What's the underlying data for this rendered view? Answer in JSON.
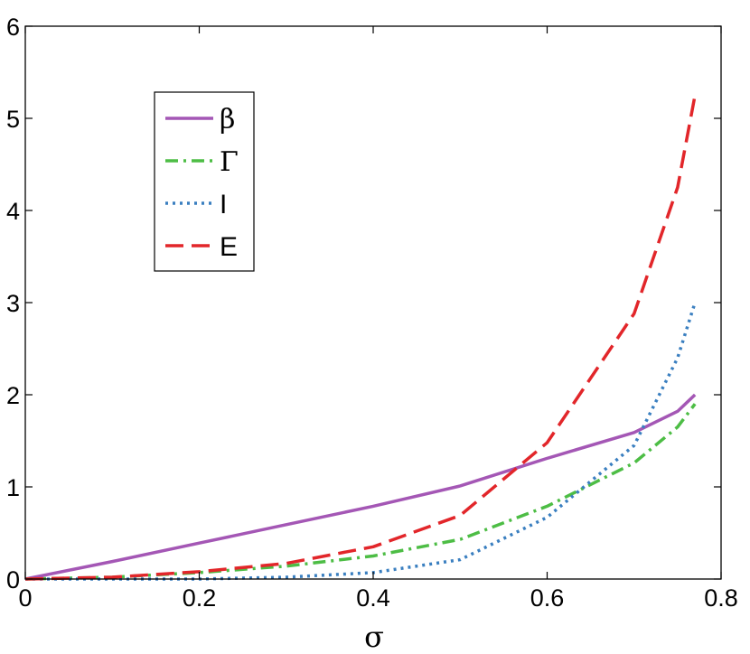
{
  "chart_data": {
    "type": "line",
    "title": "",
    "xlabel": "σ",
    "ylabel": "",
    "xlim": [
      0,
      0.8
    ],
    "ylim": [
      0,
      6
    ],
    "xticks": [
      0,
      0.2,
      0.4,
      0.6,
      0.8
    ],
    "xtick_labels": [
      "0",
      "0.2",
      "0.4",
      "0.6",
      "0.8"
    ],
    "yticks": [
      0,
      1,
      2,
      3,
      4,
      5,
      6
    ],
    "ytick_labels": [
      "0",
      "1",
      "2",
      "3",
      "4",
      "5",
      "6"
    ],
    "grid": false,
    "legend_position": "top-left",
    "series": [
      {
        "name": "β",
        "color": "#a457b5",
        "dash": "solid",
        "x": [
          0,
          0.1,
          0.2,
          0.3,
          0.4,
          0.5,
          0.6,
          0.7,
          0.75,
          0.77
        ],
        "y": [
          0,
          0.19,
          0.39,
          0.59,
          0.79,
          1.01,
          1.31,
          1.59,
          1.82,
          2.0
        ]
      },
      {
        "name": "Γ",
        "color": "#4dbd45",
        "dash": "dashdot",
        "x": [
          0,
          0.1,
          0.2,
          0.3,
          0.4,
          0.5,
          0.6,
          0.7,
          0.75,
          0.77
        ],
        "y": [
          0,
          0.02,
          0.07,
          0.14,
          0.25,
          0.43,
          0.79,
          1.26,
          1.65,
          1.9
        ]
      },
      {
        "name": "I",
        "color": "#3a7fc0",
        "dash": "dotted",
        "x": [
          0,
          0.1,
          0.2,
          0.3,
          0.4,
          0.5,
          0.6,
          0.7,
          0.75,
          0.77
        ],
        "y": [
          0,
          0.0,
          0.0,
          0.02,
          0.07,
          0.21,
          0.67,
          1.45,
          2.4,
          3.0
        ]
      },
      {
        "name": "E",
        "color": "#e2262a",
        "dash": "dashed",
        "x": [
          0,
          0.1,
          0.2,
          0.3,
          0.4,
          0.5,
          0.6,
          0.7,
          0.75,
          0.77
        ],
        "y": [
          0,
          0.02,
          0.08,
          0.17,
          0.35,
          0.69,
          1.48,
          2.88,
          4.25,
          5.25
        ]
      }
    ]
  }
}
